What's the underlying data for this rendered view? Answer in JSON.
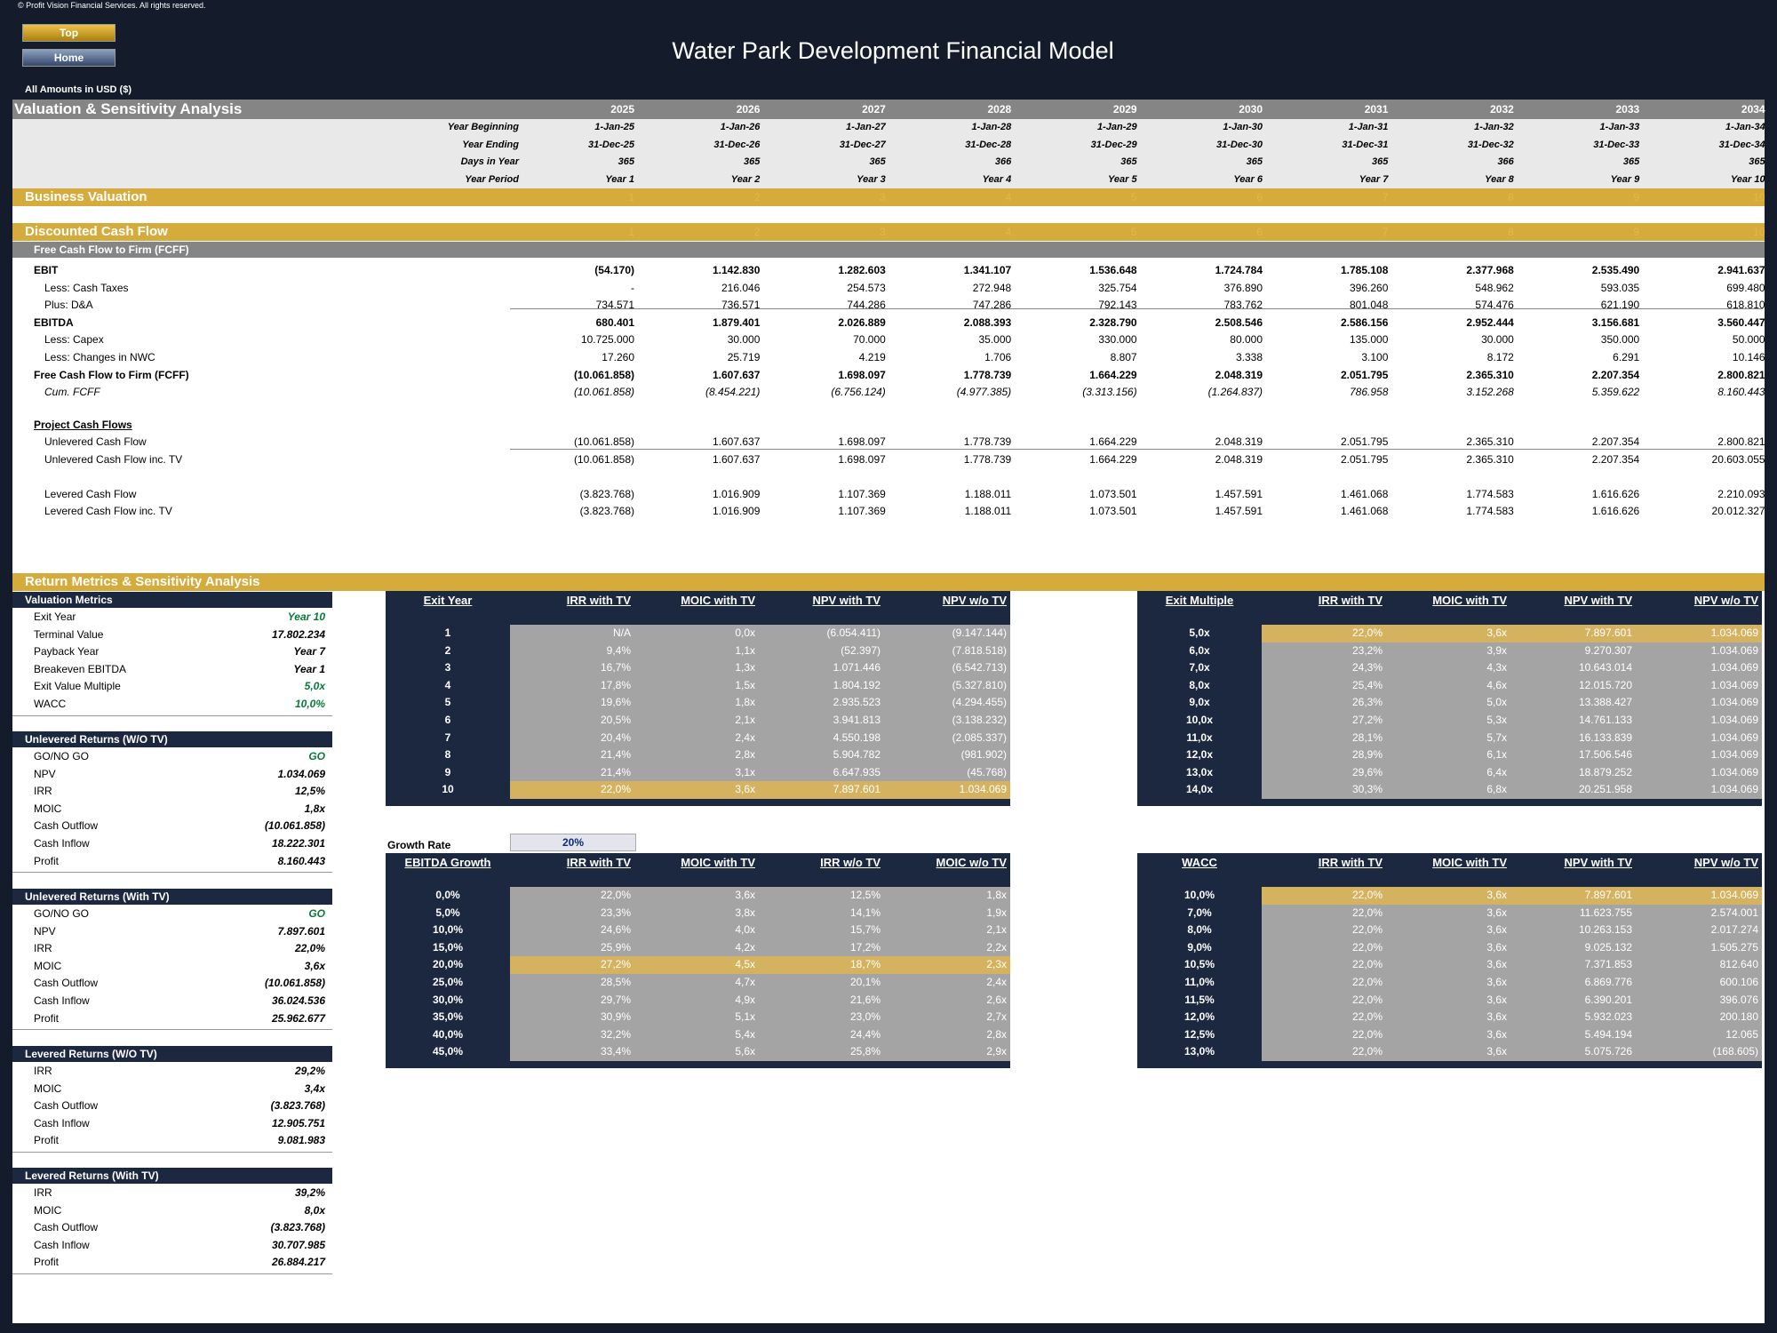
{
  "copyright": "© Profit Vision Financial Services. All rights reserved.",
  "nav": {
    "top": "Top",
    "home": "Home"
  },
  "title": "Water Park Development Financial Model",
  "amounts_label": "All Amounts in  USD ($)",
  "section_title": "Valuation & Sensitivity Analysis",
  "years": [
    "2025",
    "2026",
    "2027",
    "2028",
    "2029",
    "2030",
    "2031",
    "2032",
    "2033",
    "2034"
  ],
  "header_rows": [
    {
      "label": "Year Beginning",
      "values": [
        "1-Jan-25",
        "1-Jan-26",
        "1-Jan-27",
        "1-Jan-28",
        "1-Jan-29",
        "1-Jan-30",
        "1-Jan-31",
        "1-Jan-32",
        "1-Jan-33",
        "1-Jan-34"
      ]
    },
    {
      "label": "Year Ending",
      "values": [
        "31-Dec-25",
        "31-Dec-26",
        "31-Dec-27",
        "31-Dec-28",
        "31-Dec-29",
        "31-Dec-30",
        "31-Dec-31",
        "31-Dec-32",
        "31-Dec-33",
        "31-Dec-34"
      ]
    },
    {
      "label": "Days in Year",
      "values": [
        "365",
        "365",
        "365",
        "366",
        "365",
        "365",
        "365",
        "366",
        "365",
        "365"
      ]
    },
    {
      "label": "Year Period",
      "values": [
        "Year 1",
        "Year 2",
        "Year 3",
        "Year 4",
        "Year 5",
        "Year 6",
        "Year 7",
        "Year 8",
        "Year 9",
        "Year 10"
      ]
    }
  ],
  "business_valuation": "Business Valuation",
  "discounted_cash_flow": "Discounted Cash Flow",
  "period_numbers": [
    "1",
    "2",
    "3",
    "4",
    "5",
    "6",
    "7",
    "8",
    "9",
    "10"
  ],
  "fcff_header": "Free Cash Flow to Firm (FCFF)",
  "fcff_rows": [
    {
      "label": "EBIT",
      "bold": true,
      "indent": 0,
      "values": [
        "(54.170)",
        "1.142.830",
        "1.282.603",
        "1.341.107",
        "1.536.648",
        "1.724.784",
        "1.785.108",
        "2.377.968",
        "2.535.490",
        "2.941.637"
      ]
    },
    {
      "label": "Less: Cash Taxes",
      "indent": 1,
      "values": [
        "-",
        "216.046",
        "254.573",
        "272.948",
        "325.754",
        "376.890",
        "396.260",
        "548.962",
        "593.035",
        "699.480"
      ]
    },
    {
      "label": "Plus: D&A",
      "indent": 1,
      "values": [
        "734.571",
        "736.571",
        "744.286",
        "747.286",
        "792.143",
        "783.762",
        "801.048",
        "574.476",
        "621.190",
        "618.810"
      ]
    },
    {
      "label": "EBITDA",
      "bold": true,
      "indent": 0,
      "values": [
        "680.401",
        "1.879.401",
        "2.026.889",
        "2.088.393",
        "2.328.790",
        "2.508.546",
        "2.586.156",
        "2.952.444",
        "3.156.681",
        "3.560.447"
      ]
    },
    {
      "label": "Less: Capex",
      "indent": 1,
      "values": [
        "10.725.000",
        "30.000",
        "70.000",
        "35.000",
        "330.000",
        "80.000",
        "135.000",
        "30.000",
        "350.000",
        "50.000"
      ]
    },
    {
      "label": "Less: Changes in NWC",
      "indent": 1,
      "values": [
        "17.260",
        "25.719",
        "4.219",
        "1.706",
        "8.807",
        "3.338",
        "3.100",
        "8.172",
        "6.291",
        "10.146"
      ]
    },
    {
      "label": "Free Cash Flow to Firm (FCFF)",
      "bold": true,
      "indent": 0,
      "values": [
        "(10.061.858)",
        "1.607.637",
        "1.698.097",
        "1.778.739",
        "1.664.229",
        "2.048.319",
        "2.051.795",
        "2.365.310",
        "2.207.354",
        "2.800.821"
      ]
    },
    {
      "label": "Cum. FCFF",
      "italic": true,
      "indent": 1,
      "values": [
        "(10.061.858)",
        "(8.454.221)",
        "(6.756.124)",
        "(4.977.385)",
        "(3.313.156)",
        "(1.264.837)",
        "786.958",
        "3.152.268",
        "5.359.622",
        "8.160.443"
      ]
    }
  ],
  "project_cash_flows": "Project Cash Flows",
  "pcf_rows": [
    {
      "label": "Unlevered Cash Flow",
      "values": [
        "(10.061.858)",
        "1.607.637",
        "1.698.097",
        "1.778.739",
        "1.664.229",
        "2.048.319",
        "2.051.795",
        "2.365.310",
        "2.207.354",
        "2.800.821"
      ]
    },
    {
      "label": "Unlevered Cash Flow inc. TV",
      "values": [
        "(10.061.858)",
        "1.607.637",
        "1.698.097",
        "1.778.739",
        "1.664.229",
        "2.048.319",
        "2.051.795",
        "2.365.310",
        "2.207.354",
        "20.603.055"
      ]
    },
    {
      "label": "Levered Cash Flow",
      "values": [
        "(3.823.768)",
        "1.016.909",
        "1.107.369",
        "1.188.011",
        "1.073.501",
        "1.457.591",
        "1.461.068",
        "1.774.583",
        "1.616.626",
        "2.210.093"
      ]
    },
    {
      "label": "Levered Cash Flow inc. TV",
      "values": [
        "(3.823.768)",
        "1.016.909",
        "1.107.369",
        "1.188.011",
        "1.073.501",
        "1.457.591",
        "1.461.068",
        "1.774.583",
        "1.616.626",
        "20.012.327"
      ]
    }
  ],
  "return_metrics_title": "Return Metrics & Sensitivity Analysis",
  "metric_blocks": [
    {
      "title": "Valuation Metrics",
      "rows": [
        {
          "label": "Exit Year",
          "value": "Year 10",
          "green": true
        },
        {
          "label": "Terminal Value",
          "value": "17.802.234"
        },
        {
          "label": "Payback Year",
          "value": "Year 7"
        },
        {
          "label": "Breakeven EBITDA",
          "value": "Year 1"
        },
        {
          "label": "Exit Value Multiple",
          "value": "5,0x",
          "green": true
        },
        {
          "label": "WACC",
          "value": "10,0%",
          "green": true
        }
      ]
    },
    {
      "title": "Unlevered Returns (W/O TV)",
      "rows": [
        {
          "label": "GO/NO GO",
          "value": "GO",
          "green": true
        },
        {
          "label": "NPV",
          "value": "1.034.069"
        },
        {
          "label": "IRR",
          "value": "12,5%"
        },
        {
          "label": "MOIC",
          "value": "1,8x"
        },
        {
          "label": "Cash Outflow",
          "value": "(10.061.858)"
        },
        {
          "label": "Cash Inflow",
          "value": "18.222.301"
        },
        {
          "label": "Profit",
          "value": "8.160.443"
        }
      ]
    },
    {
      "title": "Unlevered Returns (With TV)",
      "rows": [
        {
          "label": "GO/NO GO",
          "value": "GO",
          "green": true
        },
        {
          "label": "NPV",
          "value": "7.897.601"
        },
        {
          "label": "IRR",
          "value": "22,0%"
        },
        {
          "label": "MOIC",
          "value": "3,6x"
        },
        {
          "label": "Cash Outflow",
          "value": "(10.061.858)"
        },
        {
          "label": "Cash Inflow",
          "value": "36.024.536"
        },
        {
          "label": "Profit",
          "value": "25.962.677"
        }
      ]
    },
    {
      "title": "Levered Returns (W/O TV)",
      "rows": [
        {
          "label": "IRR",
          "value": "29,2%"
        },
        {
          "label": "MOIC",
          "value": "3,4x"
        },
        {
          "label": "Cash Outflow",
          "value": "(3.823.768)"
        },
        {
          "label": "Cash Inflow",
          "value": "12.905.751"
        },
        {
          "label": "Profit",
          "value": "9.081.983"
        }
      ]
    },
    {
      "title": "Levered Returns (With TV)",
      "rows": [
        {
          "label": "IRR",
          "value": "39,2%"
        },
        {
          "label": "MOIC",
          "value": "8,0x"
        },
        {
          "label": "Cash Outflow",
          "value": "(3.823.768)"
        },
        {
          "label": "Cash Inflow",
          "value": "30.707.985"
        },
        {
          "label": "Profit",
          "value": "26.884.217"
        }
      ]
    }
  ],
  "sens_exit_year": {
    "headers": [
      "Exit Year",
      "IRR with TV",
      "MOIC with TV",
      "NPV with TV",
      "NPV w/o TV"
    ],
    "highlight": 9,
    "rows": [
      [
        "1",
        "N/A",
        "0,0x",
        "(6.054.411)",
        "(9.147.144)"
      ],
      [
        "2",
        "9,4%",
        "1,1x",
        "(52.397)",
        "(7.818.518)"
      ],
      [
        "3",
        "16,7%",
        "1,3x",
        "1.071.446",
        "(6.542.713)"
      ],
      [
        "4",
        "17,8%",
        "1,5x",
        "1.804.192",
        "(5.327.810)"
      ],
      [
        "5",
        "19,6%",
        "1,8x",
        "2.935.523",
        "(4.294.455)"
      ],
      [
        "6",
        "20,5%",
        "2,1x",
        "3.941.813",
        "(3.138.232)"
      ],
      [
        "7",
        "20,4%",
        "2,4x",
        "4.550.198",
        "(2.085.337)"
      ],
      [
        "8",
        "21,4%",
        "2,8x",
        "5.904.782",
        "(981.902)"
      ],
      [
        "9",
        "21,4%",
        "3,1x",
        "6.647.935",
        "(45.768)"
      ],
      [
        "10",
        "22,0%",
        "3,6x",
        "7.897.601",
        "1.034.069"
      ]
    ]
  },
  "sens_exit_multiple": {
    "headers": [
      "Exit Multiple",
      "IRR with TV",
      "MOIC with TV",
      "NPV with TV",
      "NPV w/o TV"
    ],
    "highlight": 0,
    "rows": [
      [
        "5,0x",
        "22,0%",
        "3,6x",
        "7.897.601",
        "1.034.069"
      ],
      [
        "6,0x",
        "23,2%",
        "3,9x",
        "9.270.307",
        "1.034.069"
      ],
      [
        "7,0x",
        "24,3%",
        "4,3x",
        "10.643.014",
        "1.034.069"
      ],
      [
        "8,0x",
        "25,4%",
        "4,6x",
        "12.015.720",
        "1.034.069"
      ],
      [
        "9,0x",
        "26,3%",
        "5,0x",
        "13.388.427",
        "1.034.069"
      ],
      [
        "10,0x",
        "27,2%",
        "5,3x",
        "14.761.133",
        "1.034.069"
      ],
      [
        "11,0x",
        "28,1%",
        "5,7x",
        "16.133.839",
        "1.034.069"
      ],
      [
        "12,0x",
        "28,9%",
        "6,1x",
        "17.506.546",
        "1.034.069"
      ],
      [
        "13,0x",
        "29,6%",
        "6,4x",
        "18.879.252",
        "1.034.069"
      ],
      [
        "14,0x",
        "30,3%",
        "6,8x",
        "20.251.958",
        "1.034.069"
      ]
    ]
  },
  "growth_rate": {
    "label": "Growth Rate",
    "value": "20%"
  },
  "sens_growth": {
    "headers": [
      "EBITDA Growth",
      "IRR with TV",
      "MOIC with TV",
      "IRR w/o TV",
      "MOIC w/o TV"
    ],
    "highlight": 4,
    "rows": [
      [
        "0,0%",
        "22,0%",
        "3,6x",
        "12,5%",
        "1,8x"
      ],
      [
        "5,0%",
        "23,3%",
        "3,8x",
        "14,1%",
        "1,9x"
      ],
      [
        "10,0%",
        "24,6%",
        "4,0x",
        "15,7%",
        "2,1x"
      ],
      [
        "15,0%",
        "25,9%",
        "4,2x",
        "17,2%",
        "2,2x"
      ],
      [
        "20,0%",
        "27,2%",
        "4,5x",
        "18,7%",
        "2,3x"
      ],
      [
        "25,0%",
        "28,5%",
        "4,7x",
        "20,1%",
        "2,4x"
      ],
      [
        "30,0%",
        "29,7%",
        "4,9x",
        "21,6%",
        "2,6x"
      ],
      [
        "35,0%",
        "30,9%",
        "5,1x",
        "23,0%",
        "2,7x"
      ],
      [
        "40,0%",
        "32,2%",
        "5,4x",
        "24,4%",
        "2,8x"
      ],
      [
        "45,0%",
        "33,4%",
        "5,6x",
        "25,8%",
        "2,9x"
      ]
    ]
  },
  "sens_wacc": {
    "headers": [
      "WACC",
      "IRR with TV",
      "MOIC with TV",
      "NPV with TV",
      "NPV w/o TV"
    ],
    "highlight": 0,
    "rows": [
      [
        "10,0%",
        "22,0%",
        "3,6x",
        "7.897.601",
        "1.034.069"
      ],
      [
        "7,0%",
        "22,0%",
        "3,6x",
        "11.623.755",
        "2.574.001"
      ],
      [
        "8,0%",
        "22,0%",
        "3,6x",
        "10.263.153",
        "2.017.274"
      ],
      [
        "9,0%",
        "22,0%",
        "3,6x",
        "9.025.132",
        "1.505.275"
      ],
      [
        "10,5%",
        "22,0%",
        "3,6x",
        "7.371.853",
        "812.640"
      ],
      [
        "11,0%",
        "22,0%",
        "3,6x",
        "6.869.776",
        "600.106"
      ],
      [
        "11,5%",
        "22,0%",
        "3,6x",
        "6.390.201",
        "396.076"
      ],
      [
        "12,0%",
        "22,0%",
        "3,6x",
        "5.932.023",
        "200.180"
      ],
      [
        "12,5%",
        "22,0%",
        "3,6x",
        "5.494.194",
        "12.065"
      ],
      [
        "13,0%",
        "22,0%",
        "3,6x",
        "5.075.726",
        "(168.605)"
      ]
    ]
  }
}
